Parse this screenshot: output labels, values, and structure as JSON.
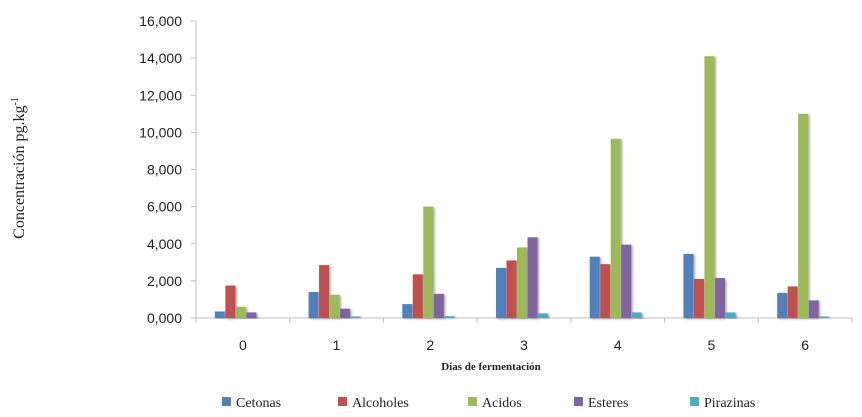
{
  "chart_data": {
    "type": "bar",
    "categories": [
      "0",
      "1",
      "2",
      "3",
      "4",
      "5",
      "6"
    ],
    "series": [
      {
        "name": "Cetonas",
        "color": "#4f81bd",
        "values": [
          350,
          1400,
          750,
          2700,
          3300,
          3450,
          1350
        ]
      },
      {
        "name": "Alcoholes",
        "color": "#c0504d",
        "values": [
          1750,
          2850,
          2350,
          3100,
          2900,
          2100,
          1700
        ]
      },
      {
        "name": "Acidos",
        "color": "#9bbb59",
        "values": [
          600,
          1250,
          6000,
          3800,
          9650,
          14100,
          11000
        ]
      },
      {
        "name": "Esteres",
        "color": "#8064a2",
        "values": [
          300,
          500,
          1300,
          4350,
          3950,
          2150,
          950
        ]
      },
      {
        "name": "Pirazinas",
        "color": "#4bacc6",
        "values": [
          0,
          50,
          100,
          250,
          300,
          300,
          50
        ]
      }
    ],
    "xlabel": "Días de fermentación",
    "ylabel": "Concentración pg.kg-1",
    "ylim": [
      0,
      16000
    ],
    "ytick_values": [
      0,
      2000,
      4000,
      6000,
      8000,
      10000,
      12000,
      14000,
      16000
    ],
    "ytick_labels": [
      "0,000",
      "2,000",
      "4,000",
      "6,000",
      "8,000",
      "10,000",
      "12,000",
      "14,000",
      "16,000"
    ],
    "grid": false,
    "legend_position": "bottom"
  }
}
